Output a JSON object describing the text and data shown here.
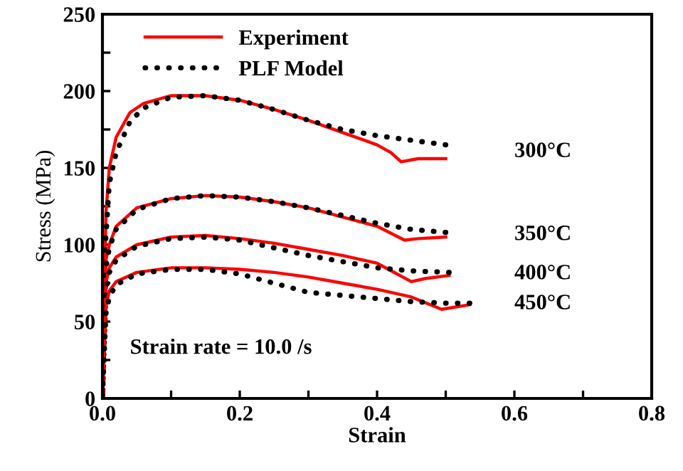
{
  "chart_data": {
    "type": "line",
    "xlabel": "Strain",
    "ylabel": "Stress (MPa)",
    "xlim": [
      0,
      0.8
    ],
    "ylim": [
      0,
      250
    ],
    "xticks": [
      "0.0",
      {
        "value": 0.1,
        "label": null
      },
      {
        "value": 0.2,
        "label": "0.2"
      },
      {
        "value": 0.3,
        "label": null
      },
      {
        "value": 0.4,
        "label": "0.4"
      },
      {
        "value": 0.5,
        "label": null
      },
      {
        "value": 0.6,
        "label": "0.6"
      },
      {
        "value": 0.7,
        "label": null
      },
      {
        "value": 0.8,
        "label": "0.8"
      }
    ],
    "yticks": [
      0,
      {
        "value": 25,
        "label": null
      },
      50,
      {
        "value": 75,
        "label": null
      },
      100,
      {
        "value": 125,
        "label": null
      },
      150,
      {
        "value": 175,
        "label": null
      },
      200,
      {
        "value": 225,
        "label": null
      },
      250
    ],
    "grid": false,
    "legend": "top left",
    "series": [
      {
        "name": "Experiment",
        "color": "#ff0000",
        "line_style": "solid",
        "marker": "none",
        "x": [
          0,
          0.005,
          0.01,
          0.02,
          0.04,
          0.06,
          0.1,
          0.15,
          0.2,
          0.25,
          0.3,
          0.35,
          0.4,
          0.42,
          0.435,
          0.46,
          0.5
        ],
        "values": [
          0,
          120,
          150,
          170,
          186,
          192,
          197,
          197,
          194,
          188,
          181,
          173,
          165,
          160,
          154,
          156,
          156
        ]
      },
      {
        "name": "PLF Model",
        "color": "#000000",
        "line_style": "dotted",
        "marker": "none",
        "x": [
          0,
          0.005,
          0.01,
          0.02,
          0.04,
          0.06,
          0.1,
          0.15,
          0.2,
          0.25,
          0.3,
          0.35,
          0.4,
          0.45,
          0.5
        ],
        "values": [
          0,
          105,
          140,
          160,
          180,
          189,
          196,
          197,
          194,
          188,
          181,
          175,
          171,
          168,
          165
        ]
      },
      {
        "color": "#ff0000",
        "line_style": "solid",
        "marker": "none",
        "x": [
          0,
          0.005,
          0.01,
          0.02,
          0.05,
          0.1,
          0.15,
          0.2,
          0.25,
          0.3,
          0.35,
          0.4,
          0.44,
          0.46,
          0.5
        ],
        "values": [
          0,
          90,
          100,
          112,
          124,
          130,
          132,
          131,
          128,
          124,
          118,
          112,
          103,
          104,
          105
        ]
      },
      {
        "color": "#000000",
        "line_style": "dotted",
        "marker": "none",
        "x": [
          0,
          0.005,
          0.01,
          0.02,
          0.05,
          0.1,
          0.15,
          0.2,
          0.25,
          0.3,
          0.35,
          0.4,
          0.45,
          0.5
        ],
        "values": [
          0,
          85,
          98,
          110,
          123,
          130,
          132,
          131,
          128,
          124,
          119,
          114,
          110,
          108
        ]
      },
      {
        "color": "#ff0000",
        "line_style": "solid",
        "marker": "none",
        "x": [
          0,
          0.005,
          0.01,
          0.02,
          0.05,
          0.1,
          0.15,
          0.2,
          0.25,
          0.3,
          0.35,
          0.4,
          0.45,
          0.47,
          0.505
        ],
        "values": [
          0,
          75,
          85,
          92,
          100,
          105,
          106,
          104,
          101,
          97,
          93,
          88,
          76,
          78,
          80
        ]
      },
      {
        "color": "#000000",
        "line_style": "dotted",
        "marker": "none",
        "x": [
          0,
          0.005,
          0.01,
          0.02,
          0.05,
          0.1,
          0.15,
          0.2,
          0.25,
          0.3,
          0.35,
          0.4,
          0.45,
          0.505
        ],
        "values": [
          0,
          70,
          82,
          90,
          99,
          104,
          105,
          103,
          98,
          93,
          89,
          85,
          83,
          82
        ]
      },
      {
        "color": "#ff0000",
        "line_style": "solid",
        "marker": "none",
        "x": [
          0,
          0.005,
          0.01,
          0.02,
          0.05,
          0.1,
          0.15,
          0.2,
          0.25,
          0.3,
          0.35,
          0.4,
          0.45,
          0.494,
          0.535
        ],
        "values": [
          0,
          60,
          70,
          76,
          82,
          85,
          85,
          84,
          82,
          79,
          75,
          71,
          66,
          58,
          61
        ]
      },
      {
        "color": "#000000",
        "line_style": "dotted",
        "marker": "none",
        "x": [
          0,
          0.005,
          0.01,
          0.02,
          0.05,
          0.1,
          0.15,
          0.2,
          0.25,
          0.3,
          0.35,
          0.4,
          0.45,
          0.5,
          0.535
        ],
        "values": [
          0,
          55,
          66,
          74,
          81,
          84,
          84,
          81,
          75,
          69,
          67,
          65,
          63,
          62,
          62
        ]
      }
    ],
    "annotations": [
      "300°C",
      "350°C",
      "400°C",
      "450°C",
      "Strain rate = 10.0 /s"
    ]
  }
}
